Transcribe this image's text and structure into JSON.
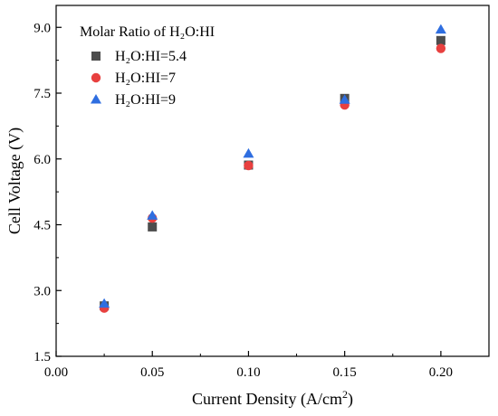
{
  "chart_data": {
    "type": "scatter",
    "title": "",
    "xlabel": "Current Density (A/cm²)",
    "xlabel_main": "Current Density (A/cm",
    "xlabel_sup": "2",
    "xlabel_close": ")",
    "ylabel": "Cell Voltage (V)",
    "xlim": [
      0.0,
      0.225
    ],
    "ylim": [
      1.5,
      9.5
    ],
    "xticks": [
      "0.00",
      "0.05",
      "0.10",
      "0.15",
      "0.20"
    ],
    "yticks": [
      "1.5",
      "3.0",
      "4.5",
      "6.0",
      "7.5",
      "9.0"
    ],
    "xtick_values": [
      0.0,
      0.05,
      0.1,
      0.15,
      0.2
    ],
    "ytick_values": [
      1.5,
      3.0,
      4.5,
      6.0,
      7.5,
      9.0
    ],
    "grid": false,
    "legend_title": "Molar Ratio of H₂O:HI",
    "legend_placement": "top-left",
    "x": [
      0.025,
      0.05,
      0.1,
      0.15,
      0.2
    ],
    "series": [
      {
        "name": "H₂O:HI=5.4",
        "marker": "square",
        "color": "#4d4d4d",
        "values": [
          2.65,
          4.45,
          5.86,
          7.38,
          8.7
        ]
      },
      {
        "name": "H₂O:HI=7",
        "marker": "circle",
        "color": "#e8403f",
        "values": [
          2.6,
          4.65,
          5.85,
          7.23,
          8.52
        ]
      },
      {
        "name": "H₂O:HI=9",
        "marker": "triangle",
        "color": "#2f6ee0",
        "values": [
          2.7,
          4.71,
          6.12,
          7.35,
          8.95
        ]
      }
    ]
  }
}
